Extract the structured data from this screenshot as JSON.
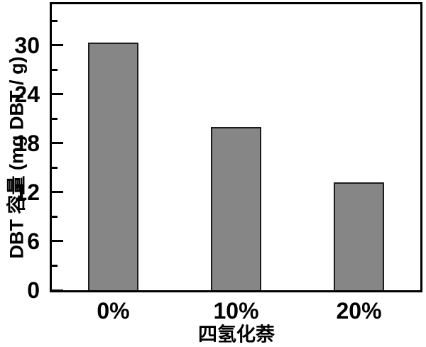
{
  "chart_data": {
    "type": "bar",
    "title": "",
    "categories": [
      "0%",
      "10%",
      "20%"
    ],
    "values": [
      30.3,
      20.0,
      13.2
    ],
    "xlabel": "四氢化萘",
    "ylabel": "DBT 容量 (mg DBT / g)",
    "ylim": [
      0,
      35
    ],
    "yticks": [
      0,
      6,
      12,
      18,
      24,
      30
    ],
    "minor_tick_interval": 3,
    "grid": false,
    "legend_position": "none",
    "colors": {
      "bar_fill": "#868686",
      "bar_edge": "#1c1c1c",
      "axis": "#000000",
      "text": "#000000",
      "background": "#ffffff"
    }
  }
}
